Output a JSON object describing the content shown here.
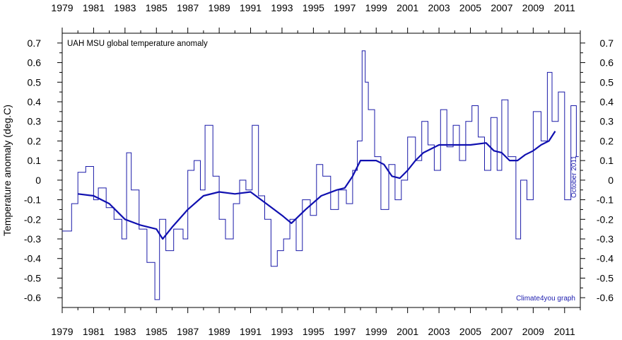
{
  "chart_data": {
    "type": "line",
    "title": "UAH MSU global temperature anomaly",
    "ylabel": "Temperature anomaly (deg.C)",
    "date_note": "October 2011",
    "credit": "Climate4you graph",
    "xlim": [
      1979,
      2012
    ],
    "ylim": [
      -0.65,
      0.75
    ],
    "x_tick_labels": [
      "1979",
      "1981",
      "1983",
      "1985",
      "1987",
      "1989",
      "1991",
      "1993",
      "1995",
      "1997",
      "1999",
      "2001",
      "2003",
      "2005",
      "2007",
      "2009",
      "2011"
    ],
    "y_tick_labels": [
      "0.7",
      "0.6",
      "0.5",
      "0.4",
      "0.3",
      "0.2",
      "0.1",
      "0",
      "-0.1",
      "-0.2",
      "-0.3",
      "-0.4",
      "-0.5",
      "-0.6"
    ],
    "grid": false,
    "colors": {
      "monthly": "#1a1aa8",
      "running_mean": "#1010b0",
      "text": "#000000",
      "note": "#2020b0"
    },
    "series": [
      {
        "style": "step",
        "x": [
          1979.0,
          1979.6,
          1980.0,
          1980.5,
          1981.0,
          1981.3,
          1981.8,
          1982.3,
          1982.8,
          1983.1,
          1983.4,
          1983.9,
          1984.4,
          1984.9,
          1985.2,
          1985.6,
          1986.1,
          1986.7,
          1987.0,
          1987.4,
          1987.8,
          1988.1,
          1988.6,
          1989.0,
          1989.4,
          1989.9,
          1990.3,
          1990.7,
          1991.1,
          1991.5,
          1991.9,
          1992.3,
          1992.7,
          1993.1,
          1993.5,
          1993.9,
          1994.3,
          1994.8,
          1995.2,
          1995.6,
          1996.1,
          1996.6,
          1997.1,
          1997.5,
          1997.8,
          1998.1,
          1998.3,
          1998.5,
          1998.9,
          1999.3,
          1999.8,
          2000.2,
          2000.6,
          2001.0,
          2001.5,
          2001.9,
          2002.3,
          2002.7,
          2003.1,
          2003.5,
          2003.9,
          2004.3,
          2004.7,
          2005.1,
          2005.5,
          2005.9,
          2006.3,
          2006.7,
          2007.0,
          2007.4,
          2007.9,
          2008.2,
          2008.6,
          2009.0,
          2009.5,
          2009.9,
          2010.2,
          2010.6,
          2011.0,
          2011.4,
          2011.75
        ],
        "y": [
          -0.26,
          -0.12,
          0.04,
          0.07,
          -0.1,
          -0.04,
          -0.14,
          -0.2,
          -0.3,
          0.14,
          -0.05,
          -0.25,
          -0.42,
          -0.61,
          -0.2,
          -0.36,
          -0.25,
          -0.3,
          0.05,
          0.1,
          -0.05,
          0.28,
          0.02,
          -0.2,
          -0.3,
          -0.12,
          0.0,
          -0.05,
          0.28,
          -0.08,
          -0.2,
          -0.44,
          -0.36,
          -0.3,
          -0.2,
          -0.36,
          -0.1,
          -0.18,
          0.08,
          0.02,
          -0.15,
          -0.05,
          -0.12,
          0.05,
          0.2,
          0.66,
          0.5,
          0.36,
          0.12,
          -0.15,
          0.08,
          -0.1,
          0.0,
          0.22,
          0.1,
          0.3,
          0.18,
          0.05,
          0.36,
          0.17,
          0.28,
          0.1,
          0.3,
          0.38,
          0.22,
          0.05,
          0.32,
          0.05,
          0.41,
          0.12,
          -0.3,
          0.0,
          -0.1,
          0.35,
          0.2,
          0.55,
          0.3,
          0.45,
          -0.1,
          0.38,
          0.12
        ]
      },
      {
        "style": "smooth",
        "x": [
          1980.0,
          1981.0,
          1982.0,
          1983.0,
          1984.0,
          1985.0,
          1985.4,
          1986.0,
          1987.0,
          1988.0,
          1989.0,
          1990.0,
          1991.0,
          1992.0,
          1993.0,
          1993.6,
          1994.5,
          1995.5,
          1996.5,
          1997.0,
          1997.5,
          1998.0,
          1999.0,
          1999.5,
          2000.0,
          2000.5,
          2001.0,
          2001.5,
          2002.0,
          2003.0,
          2004.0,
          2005.0,
          2006.0,
          2006.5,
          2007.0,
          2007.5,
          2008.0,
          2008.5,
          2009.0,
          2009.5,
          2010.0,
          2010.4
        ],
        "y": [
          -0.07,
          -0.08,
          -0.12,
          -0.2,
          -0.23,
          -0.25,
          -0.3,
          -0.24,
          -0.15,
          -0.08,
          -0.06,
          -0.07,
          -0.06,
          -0.12,
          -0.18,
          -0.22,
          -0.15,
          -0.08,
          -0.05,
          -0.04,
          0.02,
          0.1,
          0.1,
          0.08,
          0.02,
          0.01,
          0.05,
          0.1,
          0.14,
          0.18,
          0.18,
          0.18,
          0.19,
          0.15,
          0.14,
          0.1,
          0.1,
          0.13,
          0.15,
          0.18,
          0.2,
          0.25
        ]
      }
    ]
  }
}
